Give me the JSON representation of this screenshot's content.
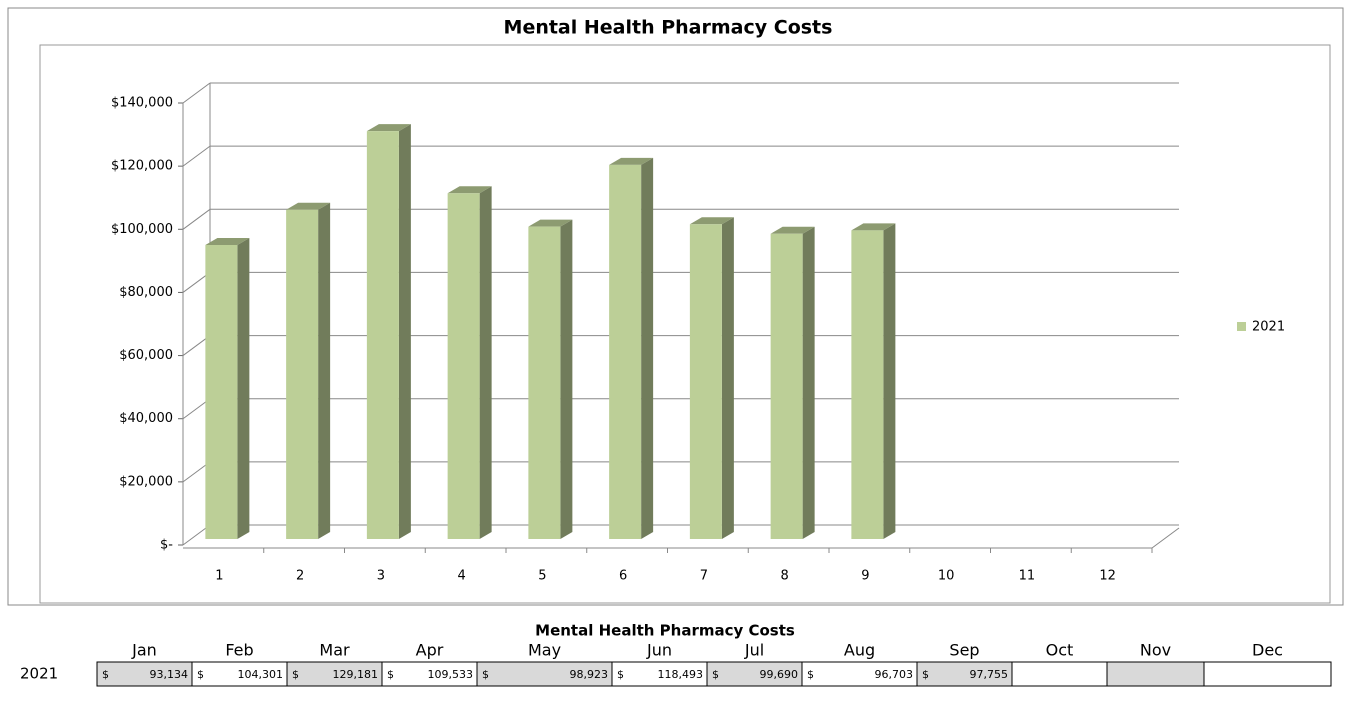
{
  "chart_data": {
    "type": "bar",
    "title": "Mental Health Pharmacy Costs",
    "categories": [
      "1",
      "2",
      "3",
      "4",
      "5",
      "6",
      "7",
      "8",
      "9",
      "10",
      "11",
      "12"
    ],
    "series": [
      {
        "name": "2021",
        "color": "#bccf97",
        "values": [
          93134,
          104301,
          129181,
          109533,
          98923,
          118493,
          99690,
          96703,
          97755,
          null,
          null,
          null
        ]
      }
    ],
    "ylim": [
      0,
      140000
    ],
    "yticks": [
      {
        "value": 0,
        "label": "$-"
      },
      {
        "value": 20000,
        "label": "$20,000"
      },
      {
        "value": 40000,
        "label": "$40,000"
      },
      {
        "value": 60000,
        "label": "$60,000"
      },
      {
        "value": 80000,
        "label": "$80,000"
      },
      {
        "value": 100000,
        "label": "$100,000"
      },
      {
        "value": 120000,
        "label": "$120,000"
      },
      {
        "value": 140000,
        "label": "$140,000"
      }
    ],
    "grid": true,
    "legend": "right"
  },
  "table": {
    "title": "Mental Health Pharmacy Costs",
    "columns": [
      "Jan",
      "Feb",
      "Mar",
      "Apr",
      "May",
      "Jun",
      "Jul",
      "Aug",
      "Sep",
      "Oct",
      "Nov",
      "Dec"
    ],
    "row_label": "2021",
    "cells": [
      {
        "symbol": "$",
        "amount": "93,134"
      },
      {
        "symbol": "$",
        "amount": "104,301"
      },
      {
        "symbol": "$",
        "amount": "129,181"
      },
      {
        "symbol": "$",
        "amount": "109,533"
      },
      {
        "symbol": "$",
        "amount": "98,923"
      },
      {
        "symbol": "$",
        "amount": "118,493"
      },
      {
        "symbol": "$",
        "amount": "99,690"
      },
      {
        "symbol": "$",
        "amount": "96,703"
      },
      {
        "symbol": "$",
        "amount": "97,755"
      }
    ]
  }
}
